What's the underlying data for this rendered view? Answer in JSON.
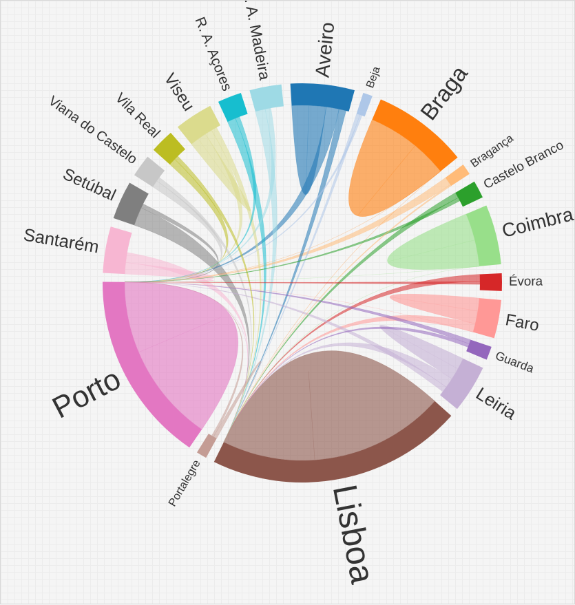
{
  "chart_data": {
    "type": "chord",
    "groups": [
      {
        "name": "Aveiro",
        "color": "#1f77b4",
        "value": 80
      },
      {
        "name": "Beja",
        "color": "#aec7e8",
        "value": 12
      },
      {
        "name": "Braga",
        "color": "#ff7f0e",
        "value": 120
      },
      {
        "name": "Bragança",
        "color": "#ffbb78",
        "value": 14
      },
      {
        "name": "Castelo Branco",
        "color": "#2ca02c",
        "value": 22
      },
      {
        "name": "Coimbra",
        "color": "#98df8a",
        "value": 75
      },
      {
        "name": "Évora",
        "color": "#d62728",
        "value": 22
      },
      {
        "name": "Faro",
        "color": "#ff9896",
        "value": 48
      },
      {
        "name": "Guarda",
        "color": "#9467bd",
        "value": 17
      },
      {
        "name": "Leiria",
        "color": "#c5b0d5",
        "value": 60
      },
      {
        "name": "Lisboa",
        "color": "#8c564b",
        "value": 320
      },
      {
        "name": "Portalegre",
        "color": "#c49c94",
        "value": 13
      },
      {
        "name": "Porto",
        "color": "#e377c2",
        "value": 240
      },
      {
        "name": "Santarém",
        "color": "#f7b6d2",
        "value": 58
      },
      {
        "name": "Setúbal",
        "color": "#7f7f7f",
        "value": 48
      },
      {
        "name": "Viana do Castelo",
        "color": "#c7c7c7",
        "value": 28
      },
      {
        "name": "Vila Real",
        "color": "#bcbd22",
        "value": 30
      },
      {
        "name": "Viseu",
        "color": "#dbdb8d",
        "value": 48
      },
      {
        "name": "R. A. Açores",
        "color": "#17becf",
        "value": 30
      },
      {
        "name": "R. A. Madeira",
        "color": "#9edae5",
        "value": 40
      }
    ],
    "flows": [
      [
        "Lisboa",
        "Lisboa",
        190
      ],
      [
        "Porto",
        "Porto",
        140
      ],
      [
        "Braga",
        "Braga",
        70
      ],
      [
        "Coimbra",
        "Coimbra",
        38
      ],
      [
        "Aveiro",
        "Aveiro",
        24
      ],
      [
        "Faro",
        "Faro",
        18
      ],
      [
        "Leiria",
        "Leiria",
        16
      ],
      [
        "Santarém",
        "Porto",
        16
      ],
      [
        "Setúbal",
        "Lisboa",
        26
      ],
      [
        "Bragança",
        "Porto",
        12
      ],
      [
        "Viseu",
        "Viseu",
        12
      ],
      [
        "Vila Real",
        "Porto",
        10
      ],
      [
        "R. A. Açores",
        "Lisboa",
        12
      ],
      [
        "R. A. Madeira",
        "Lisboa",
        14
      ],
      [
        "Aveiro",
        "Porto",
        18
      ],
      [
        "Braga",
        "Porto",
        22
      ],
      [
        "Évora",
        "Lisboa",
        10
      ],
      [
        "Castelo Branco",
        "Lisboa",
        8
      ],
      [
        "Guarda",
        "Porto",
        6
      ],
      [
        "Coimbra",
        "Lisboa",
        12
      ],
      [
        "Faro",
        "Lisboa",
        12
      ],
      [
        "Leiria",
        "Lisboa",
        14
      ],
      [
        "Viana do Castelo",
        "Porto",
        10
      ],
      [
        "Viseu",
        "Porto",
        10
      ],
      [
        "Santarém",
        "Lisboa",
        14
      ],
      [
        "Portalegre",
        "Lisboa",
        5
      ],
      [
        "Beja",
        "Lisboa",
        5
      ],
      [
        "Braga",
        "Lisboa",
        10
      ],
      [
        "Porto",
        "Lisboa",
        20
      ],
      [
        "Aveiro",
        "Lisboa",
        10
      ],
      [
        "Vila Real",
        "Lisboa",
        6
      ],
      [
        "Viana do Castelo",
        "Lisboa",
        6
      ],
      [
        "R. A. Madeira",
        "Porto",
        8
      ],
      [
        "R. A. Açores",
        "Porto",
        6
      ],
      [
        "Setúbal",
        "Porto",
        6
      ],
      [
        "Coimbra",
        "Porto",
        8
      ],
      [
        "Évora",
        "Porto",
        4
      ],
      [
        "Faro",
        "Porto",
        6
      ],
      [
        "Leiria",
        "Porto",
        8
      ],
      [
        "Guarda",
        "Lisboa",
        5
      ],
      [
        "Viseu",
        "Lisboa",
        8
      ],
      [
        "Castelo Branco",
        "Porto",
        5
      ],
      [
        "Bragança",
        "Lisboa",
        2
      ],
      [
        "Beja",
        "Porto",
        3
      ],
      [
        "Portalegre",
        "Porto",
        3
      ]
    ]
  }
}
